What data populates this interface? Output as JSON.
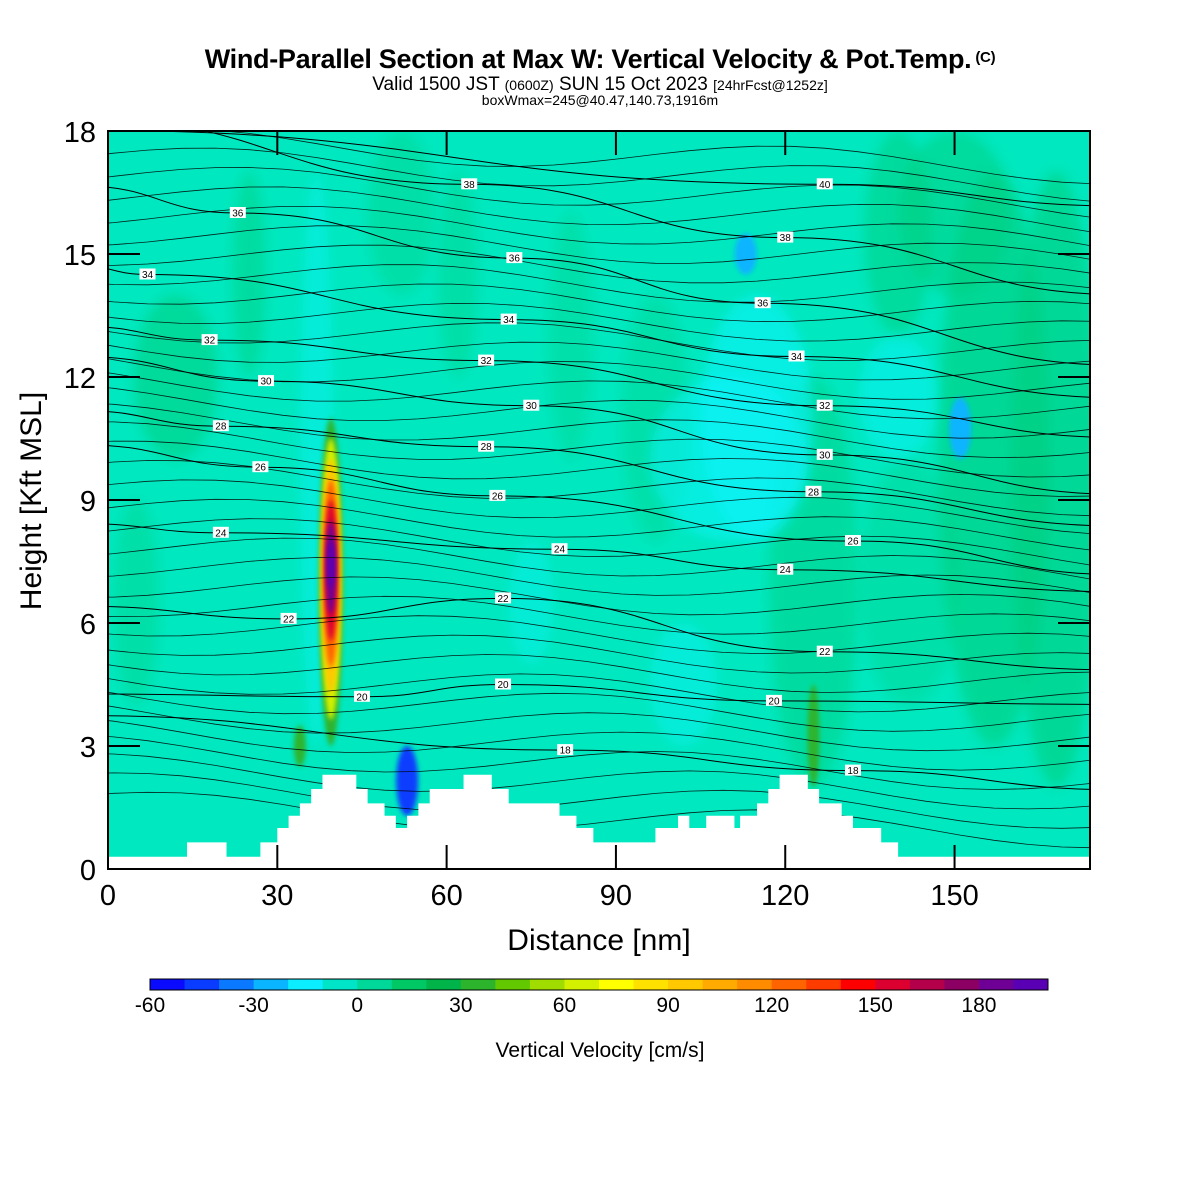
{
  "header": {
    "title": "Wind-Parallel Section at Max W: Vertical Velocity & Pot.Temp.",
    "copyright_mark": "(C)",
    "valid_prefix": "Valid 1500 JST",
    "valid_utc": "(0600Z)",
    "valid_date": "SUN 15 Oct 2023",
    "forecast_info": "[24hrFcst@1252z]",
    "box_info": "boxWmax=245@40.47,140.73,1916m"
  },
  "chart_data": {
    "type": "heatmap",
    "xlabel": "Distance [nm]",
    "ylabel": "Height [Kft MSL]",
    "xlim": [
      0,
      174
    ],
    "ylim": [
      0,
      18
    ],
    "x_ticks": [
      0,
      30,
      60,
      90,
      120,
      150
    ],
    "y_ticks": [
      0,
      3,
      6,
      9,
      12,
      15,
      18
    ],
    "colorbar": {
      "label": "Vertical Velocity [cm/s]",
      "min": -60,
      "max": 200,
      "step": 10,
      "tick_values": [
        -60,
        -30,
        0,
        30,
        60,
        90,
        120,
        150,
        180
      ],
      "colors": [
        "#0a0aff",
        "#0a3cff",
        "#0a78ff",
        "#0ab4ff",
        "#0aeeff",
        "#00e5c8",
        "#00d89a",
        "#00c864",
        "#00b44a",
        "#2db42d",
        "#64c800",
        "#a0dc00",
        "#d2f000",
        "#ffff00",
        "#ffe100",
        "#ffc800",
        "#ffaa00",
        "#ff8c00",
        "#ff6400",
        "#ff3c00",
        "#ff0000",
        "#dc0030",
        "#b4004a",
        "#8c0064",
        "#6e0096",
        "#5a00b4"
      ]
    },
    "vertical_velocity_features": [
      {
        "kind": "updraft",
        "x": 39.5,
        "height_range": [
          3.0,
          11.0
        ],
        "peak_value": 245,
        "peak_height": 7.5
      },
      {
        "kind": "downdraft",
        "x": 53,
        "height_range": [
          1.3,
          3.0
        ],
        "peak_value": -45
      },
      {
        "kind": "downdraft",
        "x": 151,
        "height_range": [
          10.0,
          11.5
        ],
        "peak_value": -25
      },
      {
        "kind": "downdraft",
        "x": 113,
        "height_range": [
          14.5,
          15.5
        ],
        "peak_value": -30
      },
      {
        "kind": "updraft",
        "x": 125,
        "height_range": [
          2.0,
          4.5
        ],
        "peak_value": 35
      },
      {
        "kind": "updraft",
        "x": 34,
        "height_range": [
          2.5,
          3.5
        ],
        "peak_value": 30
      }
    ],
    "terrain_heights": [
      {
        "x": 0,
        "h": 0.3
      },
      {
        "x": 14,
        "h": 0.3
      },
      {
        "x": 14,
        "h": 0.65
      },
      {
        "x": 21,
        "h": 0.65
      },
      {
        "x": 21,
        "h": 0.3
      },
      {
        "x": 27,
        "h": 0.3
      },
      {
        "x": 27,
        "h": 0.65
      },
      {
        "x": 30,
        "h": 0.65
      },
      {
        "x": 30,
        "h": 1.0
      },
      {
        "x": 32,
        "h": 1.0
      },
      {
        "x": 32,
        "h": 1.3
      },
      {
        "x": 34,
        "h": 1.3
      },
      {
        "x": 34,
        "h": 1.6
      },
      {
        "x": 36,
        "h": 1.6
      },
      {
        "x": 36,
        "h": 1.95
      },
      {
        "x": 38,
        "h": 1.95
      },
      {
        "x": 38,
        "h": 2.3
      },
      {
        "x": 44,
        "h": 2.3
      },
      {
        "x": 44,
        "h": 1.95
      },
      {
        "x": 46,
        "h": 1.95
      },
      {
        "x": 46,
        "h": 1.6
      },
      {
        "x": 49,
        "h": 1.6
      },
      {
        "x": 49,
        "h": 1.3
      },
      {
        "x": 51,
        "h": 1.3
      },
      {
        "x": 51,
        "h": 1.0
      },
      {
        "x": 53,
        "h": 1.0
      },
      {
        "x": 53,
        "h": 1.3
      },
      {
        "x": 55,
        "h": 1.3
      },
      {
        "x": 55,
        "h": 1.6
      },
      {
        "x": 57,
        "h": 1.6
      },
      {
        "x": 57,
        "h": 1.95
      },
      {
        "x": 63,
        "h": 1.95
      },
      {
        "x": 63,
        "h": 2.3
      },
      {
        "x": 68,
        "h": 2.3
      },
      {
        "x": 68,
        "h": 1.95
      },
      {
        "x": 71,
        "h": 1.95
      },
      {
        "x": 71,
        "h": 1.6
      },
      {
        "x": 75,
        "h": 1.6
      },
      {
        "x": 75,
        "h": 1.6
      },
      {
        "x": 80,
        "h": 1.6
      },
      {
        "x": 80,
        "h": 1.3
      },
      {
        "x": 83,
        "h": 1.3
      },
      {
        "x": 83,
        "h": 1.0
      },
      {
        "x": 86,
        "h": 1.0
      },
      {
        "x": 86,
        "h": 0.65
      },
      {
        "x": 97,
        "h": 0.65
      },
      {
        "x": 97,
        "h": 1.0
      },
      {
        "x": 101,
        "h": 1.0
      },
      {
        "x": 101,
        "h": 1.3
      },
      {
        "x": 103,
        "h": 1.3
      },
      {
        "x": 103,
        "h": 1.0
      },
      {
        "x": 106,
        "h": 1.0
      },
      {
        "x": 106,
        "h": 1.3
      },
      {
        "x": 111,
        "h": 1.3
      },
      {
        "x": 111,
        "h": 1.0
      },
      {
        "x": 112,
        "h": 1.0
      },
      {
        "x": 112,
        "h": 1.3
      },
      {
        "x": 115,
        "h": 1.3
      },
      {
        "x": 115,
        "h": 1.6
      },
      {
        "x": 117,
        "h": 1.6
      },
      {
        "x": 117,
        "h": 1.95
      },
      {
        "x": 119,
        "h": 1.95
      },
      {
        "x": 119,
        "h": 2.3
      },
      {
        "x": 124,
        "h": 2.3
      },
      {
        "x": 124,
        "h": 1.95
      },
      {
        "x": 126,
        "h": 1.95
      },
      {
        "x": 126,
        "h": 1.6
      },
      {
        "x": 130,
        "h": 1.6
      },
      {
        "x": 130,
        "h": 1.3
      },
      {
        "x": 132,
        "h": 1.3
      },
      {
        "x": 132,
        "h": 1.0
      },
      {
        "x": 137,
        "h": 1.0
      },
      {
        "x": 137,
        "h": 0.65
      },
      {
        "x": 140,
        "h": 0.65
      },
      {
        "x": 140,
        "h": 0.3
      },
      {
        "x": 174,
        "h": 0.3
      }
    ],
    "potential_temperature_contour_labels": [
      {
        "value": "18",
        "x": 81,
        "y": 2.9
      },
      {
        "value": "18",
        "x": 132,
        "y": 2.4
      },
      {
        "value": "20",
        "x": 45,
        "y": 4.2
      },
      {
        "value": "20",
        "x": 70,
        "y": 4.5
      },
      {
        "value": "20",
        "x": 118,
        "y": 4.1
      },
      {
        "value": "22",
        "x": 32,
        "y": 6.1
      },
      {
        "value": "22",
        "x": 70,
        "y": 6.6
      },
      {
        "value": "22",
        "x": 127,
        "y": 5.3
      },
      {
        "value": "24",
        "x": 20,
        "y": 8.2
      },
      {
        "value": "24",
        "x": 80,
        "y": 7.8
      },
      {
        "value": "24",
        "x": 120,
        "y": 7.3
      },
      {
        "value": "26",
        "x": 27,
        "y": 9.8
      },
      {
        "value": "26",
        "x": 69,
        "y": 9.1
      },
      {
        "value": "26",
        "x": 132,
        "y": 8.0
      },
      {
        "value": "28",
        "x": 20,
        "y": 10.8
      },
      {
        "value": "28",
        "x": 67,
        "y": 10.3
      },
      {
        "value": "28",
        "x": 125,
        "y": 9.2
      },
      {
        "value": "30",
        "x": 28,
        "y": 11.9
      },
      {
        "value": "30",
        "x": 75,
        "y": 11.3
      },
      {
        "value": "30",
        "x": 127,
        "y": 10.1
      },
      {
        "value": "32",
        "x": 18,
        "y": 12.9
      },
      {
        "value": "32",
        "x": 67,
        "y": 12.4
      },
      {
        "value": "32",
        "x": 127,
        "y": 11.3
      },
      {
        "value": "34",
        "x": 7,
        "y": 14.5
      },
      {
        "value": "34",
        "x": 71,
        "y": 13.4
      },
      {
        "value": "34",
        "x": 122,
        "y": 12.5
      },
      {
        "value": "36",
        "x": 23,
        "y": 16.0
      },
      {
        "value": "36",
        "x": 72,
        "y": 14.9
      },
      {
        "value": "36",
        "x": 116,
        "y": 13.8
      },
      {
        "value": "38",
        "x": 64,
        "y": 16.7
      },
      {
        "value": "38",
        "x": 120,
        "y": 15.4
      },
      {
        "value": "40",
        "x": 127,
        "y": 16.7
      }
    ]
  }
}
